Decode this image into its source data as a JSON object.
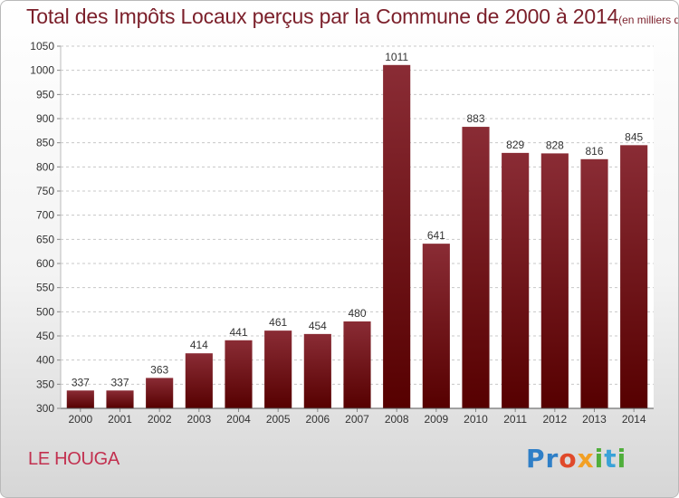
{
  "header": {
    "title": "Total des Impôts Locaux perçus par la Commune de 2000 à 2014",
    "unit": "(en milliers d'€)"
  },
  "footer": {
    "commune": "LE HOUGA",
    "logo_text": "Proxiti"
  },
  "colors": {
    "title": "#7b1f2a",
    "commune": "#c2304f",
    "bar_top": "#8a2c35",
    "bar_bottom": "#560000",
    "grid": "#c8c8c8"
  },
  "chart_data": {
    "type": "bar",
    "title": "Total des Impôts Locaux perçus par la Commune de 2000 à 2014",
    "xlabel": "",
    "ylabel": "",
    "ylim": [
      300,
      1050
    ],
    "yticks": [
      300,
      350,
      400,
      450,
      500,
      550,
      600,
      650,
      700,
      750,
      800,
      850,
      900,
      950,
      1000,
      1050
    ],
    "grid": true,
    "categories": [
      "2000",
      "2001",
      "2002",
      "2003",
      "2004",
      "2005",
      "2006",
      "2007",
      "2008",
      "2009",
      "2010",
      "2011",
      "2012",
      "2013",
      "2014"
    ],
    "values": [
      337,
      337,
      363,
      414,
      441,
      461,
      454,
      480,
      1011,
      641,
      883,
      829,
      828,
      816,
      845
    ]
  }
}
